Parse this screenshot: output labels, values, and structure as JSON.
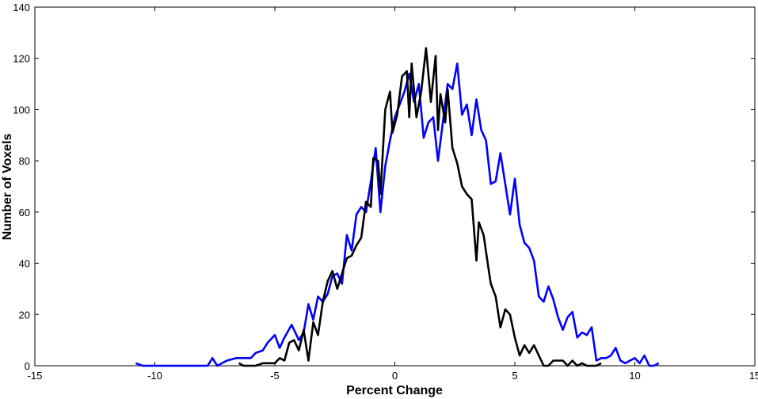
{
  "chart_data": {
    "type": "line",
    "title": "",
    "xlabel": "Percent Change",
    "ylabel": "Number of Voxels",
    "xlim": [
      -15,
      15
    ],
    "ylim": [
      0,
      140
    ],
    "xticks": [
      -15,
      -10,
      -5,
      0,
      5,
      10,
      15
    ],
    "yticks": [
      0,
      20,
      40,
      60,
      80,
      100,
      120,
      140
    ],
    "grid": false,
    "legend": "none",
    "series": [
      {
        "color": "#0000ff",
        "points": [
          [
            -10.8,
            1
          ],
          [
            -10.5,
            0
          ],
          [
            -10.0,
            0
          ],
          [
            -9.0,
            0
          ],
          [
            -8.0,
            0
          ],
          [
            -7.8,
            0
          ],
          [
            -7.6,
            3
          ],
          [
            -7.4,
            0
          ],
          [
            -7.0,
            2
          ],
          [
            -6.6,
            3
          ],
          [
            -6.2,
            3
          ],
          [
            -6.0,
            3
          ],
          [
            -5.8,
            5
          ],
          [
            -5.5,
            6
          ],
          [
            -5.3,
            9
          ],
          [
            -5.0,
            12
          ],
          [
            -4.8,
            7
          ],
          [
            -4.6,
            11
          ],
          [
            -4.3,
            16
          ],
          [
            -4.0,
            10
          ],
          [
            -3.8,
            13
          ],
          [
            -3.6,
            24
          ],
          [
            -3.4,
            18
          ],
          [
            -3.2,
            27
          ],
          [
            -3.0,
            25
          ],
          [
            -2.8,
            28
          ],
          [
            -2.6,
            35
          ],
          [
            -2.4,
            36
          ],
          [
            -2.2,
            32
          ],
          [
            -2.0,
            51
          ],
          [
            -1.8,
            45
          ],
          [
            -1.6,
            59
          ],
          [
            -1.4,
            62
          ],
          [
            -1.2,
            60
          ],
          [
            -1.0,
            72
          ],
          [
            -0.8,
            85
          ],
          [
            -0.6,
            60
          ],
          [
            -0.4,
            78
          ],
          [
            -0.2,
            88
          ],
          [
            0.0,
            97
          ],
          [
            0.2,
            102
          ],
          [
            0.4,
            107
          ],
          [
            0.6,
            114
          ],
          [
            0.8,
            103
          ],
          [
            1.0,
            110
          ],
          [
            1.2,
            89
          ],
          [
            1.4,
            95
          ],
          [
            1.6,
            97
          ],
          [
            1.8,
            80
          ],
          [
            2.0,
            95
          ],
          [
            2.2,
            110
          ],
          [
            2.4,
            108
          ],
          [
            2.6,
            118
          ],
          [
            2.8,
            98
          ],
          [
            3.0,
            102
          ],
          [
            3.2,
            90
          ],
          [
            3.4,
            104
          ],
          [
            3.6,
            92
          ],
          [
            3.8,
            88
          ],
          [
            4.0,
            71
          ],
          [
            4.2,
            72
          ],
          [
            4.4,
            83
          ],
          [
            4.6,
            71
          ],
          [
            4.8,
            59
          ],
          [
            5.0,
            73
          ],
          [
            5.2,
            55
          ],
          [
            5.4,
            48
          ],
          [
            5.6,
            46
          ],
          [
            5.8,
            41
          ],
          [
            6.0,
            27
          ],
          [
            6.2,
            25
          ],
          [
            6.4,
            31
          ],
          [
            6.6,
            26
          ],
          [
            6.8,
            19
          ],
          [
            7.0,
            14
          ],
          [
            7.2,
            19
          ],
          [
            7.4,
            21
          ],
          [
            7.6,
            11
          ],
          [
            7.8,
            13
          ],
          [
            8.0,
            12
          ],
          [
            8.2,
            15
          ],
          [
            8.4,
            2
          ],
          [
            8.6,
            3
          ],
          [
            8.8,
            3
          ],
          [
            9.0,
            4
          ],
          [
            9.2,
            7
          ],
          [
            9.4,
            2
          ],
          [
            9.6,
            1
          ],
          [
            9.8,
            2
          ],
          [
            10.0,
            3
          ],
          [
            10.2,
            1
          ],
          [
            10.4,
            4
          ],
          [
            10.6,
            0
          ],
          [
            10.8,
            0
          ],
          [
            11.0,
            1
          ]
        ]
      },
      {
        "color": "#000000",
        "points": [
          [
            -6.5,
            1
          ],
          [
            -6.3,
            0
          ],
          [
            -6.0,
            0
          ],
          [
            -5.8,
            0
          ],
          [
            -5.5,
            1
          ],
          [
            -5.2,
            1
          ],
          [
            -5.0,
            1
          ],
          [
            -4.8,
            3
          ],
          [
            -4.6,
            2
          ],
          [
            -4.4,
            9
          ],
          [
            -4.2,
            10
          ],
          [
            -4.0,
            6
          ],
          [
            -3.8,
            14
          ],
          [
            -3.6,
            2
          ],
          [
            -3.4,
            17
          ],
          [
            -3.2,
            12
          ],
          [
            -3.0,
            25
          ],
          [
            -2.8,
            33
          ],
          [
            -2.6,
            37
          ],
          [
            -2.4,
            30
          ],
          [
            -2.2,
            36
          ],
          [
            -2.0,
            42
          ],
          [
            -1.8,
            43
          ],
          [
            -1.6,
            47
          ],
          [
            -1.4,
            50
          ],
          [
            -1.2,
            64
          ],
          [
            -1.0,
            62
          ],
          [
            -0.9,
            81
          ],
          [
            -0.7,
            80
          ],
          [
            -0.6,
            67
          ],
          [
            -0.4,
            100
          ],
          [
            -0.2,
            107
          ],
          [
            -0.1,
            91
          ],
          [
            0.1,
            98
          ],
          [
            0.3,
            113
          ],
          [
            0.5,
            115
          ],
          [
            0.6,
            97
          ],
          [
            0.7,
            118
          ],
          [
            0.9,
            97
          ],
          [
            1.1,
            107
          ],
          [
            1.3,
            124
          ],
          [
            1.5,
            103
          ],
          [
            1.7,
            121
          ],
          [
            1.8,
            92
          ],
          [
            1.9,
            106
          ],
          [
            2.1,
            95
          ],
          [
            2.2,
            108
          ],
          [
            2.4,
            85
          ],
          [
            2.6,
            79
          ],
          [
            2.8,
            70
          ],
          [
            3.0,
            67
          ],
          [
            3.2,
            65
          ],
          [
            3.4,
            41
          ],
          [
            3.5,
            56
          ],
          [
            3.7,
            51
          ],
          [
            3.9,
            38
          ],
          [
            4.0,
            32
          ],
          [
            4.2,
            27
          ],
          [
            4.4,
            15
          ],
          [
            4.6,
            22
          ],
          [
            4.8,
            20
          ],
          [
            5.0,
            11
          ],
          [
            5.2,
            4
          ],
          [
            5.4,
            8
          ],
          [
            5.6,
            5
          ],
          [
            5.8,
            8
          ],
          [
            6.0,
            4
          ],
          [
            6.2,
            0
          ],
          [
            6.4,
            0
          ],
          [
            6.6,
            2
          ],
          [
            6.8,
            2
          ],
          [
            7.0,
            2
          ],
          [
            7.2,
            0
          ],
          [
            7.4,
            2
          ],
          [
            7.6,
            0
          ],
          [
            7.8,
            1
          ],
          [
            8.0,
            0
          ],
          [
            8.2,
            0
          ],
          [
            8.4,
            0
          ],
          [
            8.6,
            1
          ]
        ]
      }
    ]
  }
}
